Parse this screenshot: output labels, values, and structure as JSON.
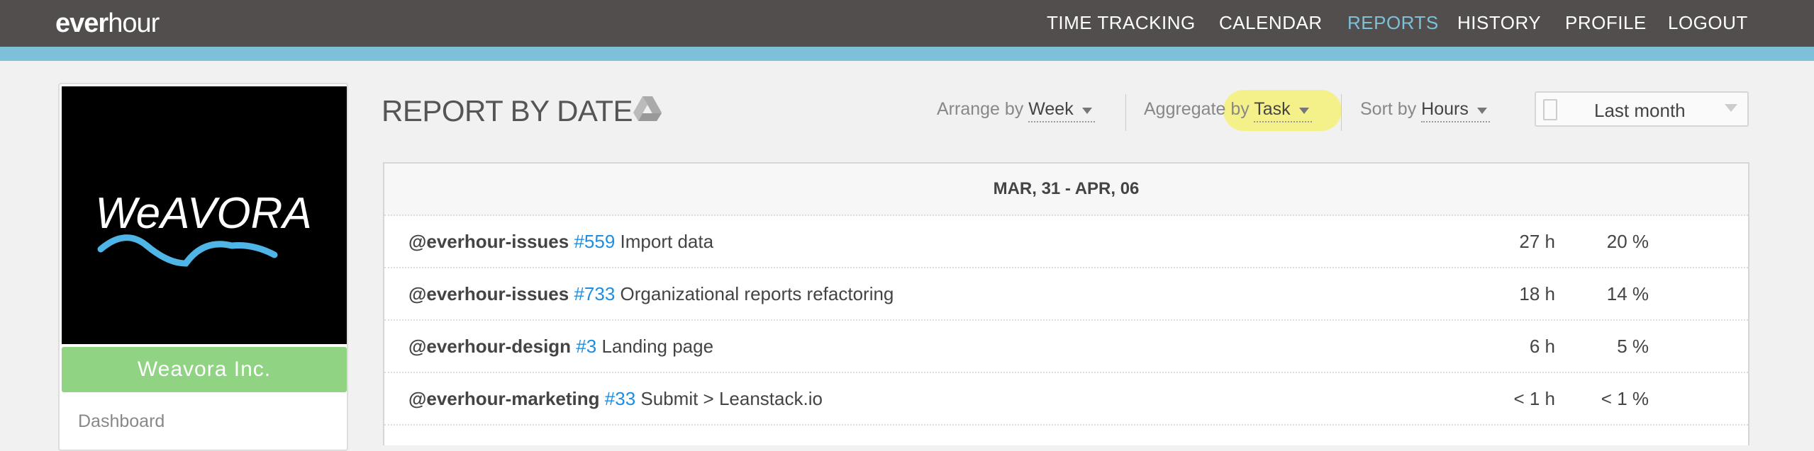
{
  "app": {
    "logo_bold": "ever",
    "logo_light": "hour"
  },
  "nav": [
    {
      "label": "TIME TRACKING"
    },
    {
      "label": "CALENDAR"
    },
    {
      "label": "REPORTS",
      "active": true
    },
    {
      "label": "HISTORY"
    },
    {
      "label": "PROFILE"
    },
    {
      "label": "LOGOUT"
    }
  ],
  "colors": {
    "topbar": "#524e4d",
    "accent": "#7dc0d8",
    "company_button": "#8fd383",
    "link": "#1e8ee0",
    "highlight": "#f5f18a"
  },
  "sidebar": {
    "brand_logo_text": "WeAVORA",
    "company": "Weavora Inc.",
    "items": [
      {
        "label": "Dashboard"
      }
    ]
  },
  "page": {
    "title": "REPORT BY DATE",
    "export_icon": "google-drive-icon"
  },
  "controls": {
    "arrange": {
      "label": "Arrange by",
      "value": "Week"
    },
    "aggregate": {
      "label": "Aggregate by",
      "value": "Task"
    },
    "sort": {
      "label": "Sort by",
      "value": "Hours"
    },
    "date_range": {
      "value": "Last month",
      "icon": "calendar-icon"
    }
  },
  "table": {
    "period": "MAR, 31 - APR, 06",
    "rows": [
      {
        "project": "@everhour-issues",
        "number": "#559",
        "task": "Import data",
        "hours": "27 h",
        "percent": "20 %"
      },
      {
        "project": "@everhour-issues",
        "number": "#733",
        "task": "Organizational reports refactoring",
        "hours": "18 h",
        "percent": "14 %"
      },
      {
        "project": "@everhour-design",
        "number": "#3",
        "task": "Landing page",
        "hours": "6 h",
        "percent": "5 %"
      },
      {
        "project": "@everhour-marketing",
        "number": "#33",
        "task": "Submit > Leanstack.io",
        "hours": "< 1 h",
        "percent": "< 1 %"
      }
    ]
  }
}
